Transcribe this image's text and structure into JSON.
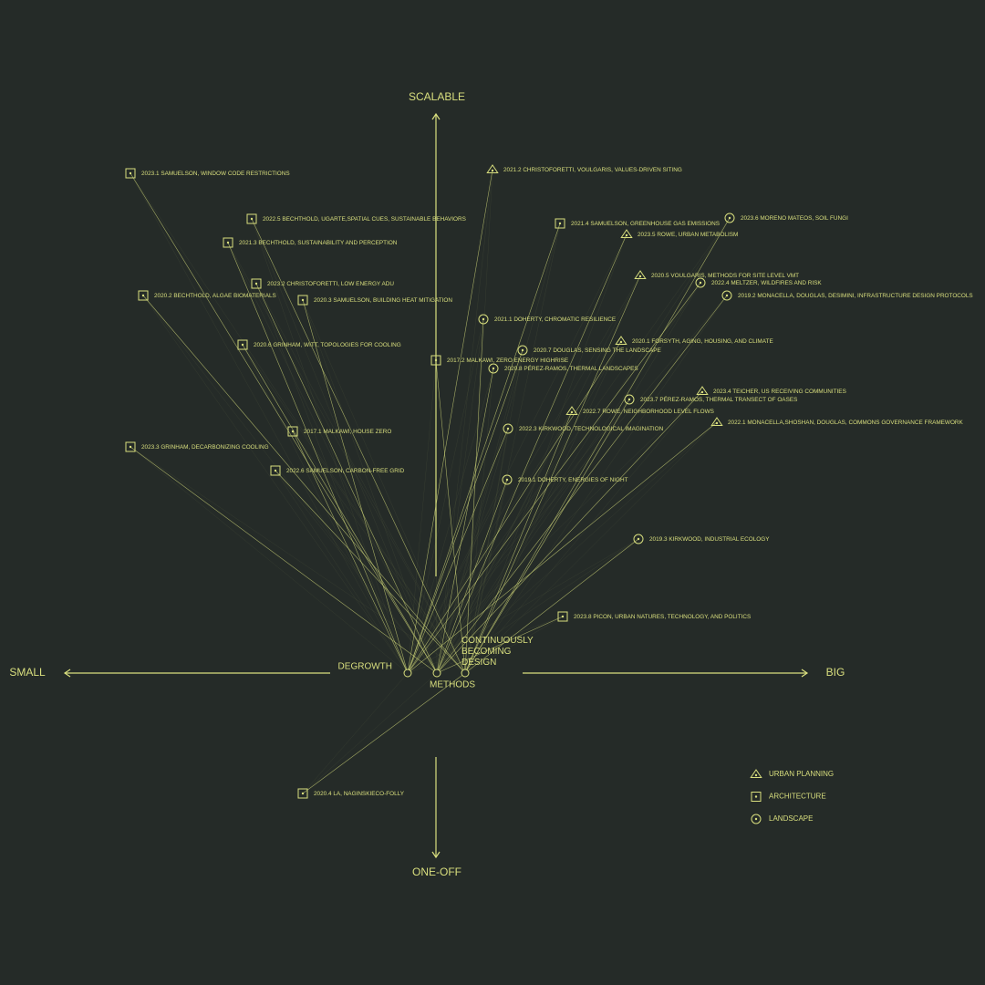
{
  "axes": {
    "top": "SCALABLE",
    "bottom": "ONE-OFF",
    "left": "SMALL",
    "right": "BIG"
  },
  "hubs": [
    "DEGROWTH",
    "METHODS",
    "CONTINUOUSLY BECOMING DESIGN"
  ],
  "legend": [
    {
      "label": "URBAN PLANNING",
      "items": [
        "2021.2 CHRISTOFORETTI, VOULGARIS, VALUES-DRIVEN SITING",
        "2023.5 ROWE, URBAN METABOLISM",
        "2020.5 VOULGARIS, METHODS FOR SITE LEVEL VMT",
        "2020.1 FORSYTH, AGING, HOUSING, AND CLIMATE",
        "2023.4 TEICHER, US RECEIVING COMMUNITIES",
        "2022.7 ROWE, NEIGHBORHOOD LEVEL FLOWS",
        "2022.1 MONACELLA,SHOSHAN, DOUGLAS, COMMONS GOVERNANCE FRAMEWORK"
      ]
    },
    {
      "label": "ARCHITECTURE",
      "items": [
        "2023.1 SAMUELSON, WINDOW CODE RESTRICTIONS",
        "2022.5 BECHTHOLD, UGARTE,SPATIAL CUES, SUSTAINABLE BEHAVIORS",
        "2021.3 BECHTHOLD, SUSTAINABILITY AND PERCEPTION",
        "2023.2 CHRISTOFORETTI, LOW ENERGY ADU",
        "2020.2 BECHTHOLD, ALGAE BIOMATERIALS",
        "2020.3 SAMUELSON, BUILDING HEAT MITIGATION",
        "2020.6 GRINHAM, WITT, TOPOLOGIES FOR COOLING",
        "2017.2 MALKAWI, ZERO ENERGY HIGHRISE",
        "2017.1 MALKAWI, HOUSE ZERO",
        "2023.3 GRINHAM, DECARBONIZING COOLING",
        "2022.6 SAMUELSON, CARBON-FREE GRID",
        "2021.4 SAMUELSON, GREENHOUSE GAS EMISSIONS",
        "2023.8 PICON, URBAN NATURES, TECHNOLOGY, AND POLITICS",
        "2020.4 LA, NAGINSKIECO-FOLLY"
      ]
    },
    {
      "label": "LANDSCAPE",
      "items": [
        "2023.6 MORENO MATEOS, SOIL FUNGI",
        "2022.4 MELTZER, WILDFIRES AND RISK",
        "2019.2 MONACELLA, DOUGLAS, DESIMINI, INFRASTRUCTURE DESIGN PROTOCOLS",
        "2021.1 DOHERTY, CHROMATIC RESILIENCE",
        "2020.7 DOUGLAS, SENSING THE LANDSCAPE",
        "2020.8 PÉREZ-RAMOS, THERMAL LANDSCAPES",
        "2023.7 PÉREZ-RAMOS, THERMAL TRANSECT OF OASES",
        "2022.3 KIRKWOOD, TECHNOLOGICAL IMAGINATION",
        "2019.1 DOHERTY, ENERGIES OF NIGHT",
        "2019.3 KIRKWOOD, INDUSTRIAL ECOLOGY"
      ]
    }
  ]
}
